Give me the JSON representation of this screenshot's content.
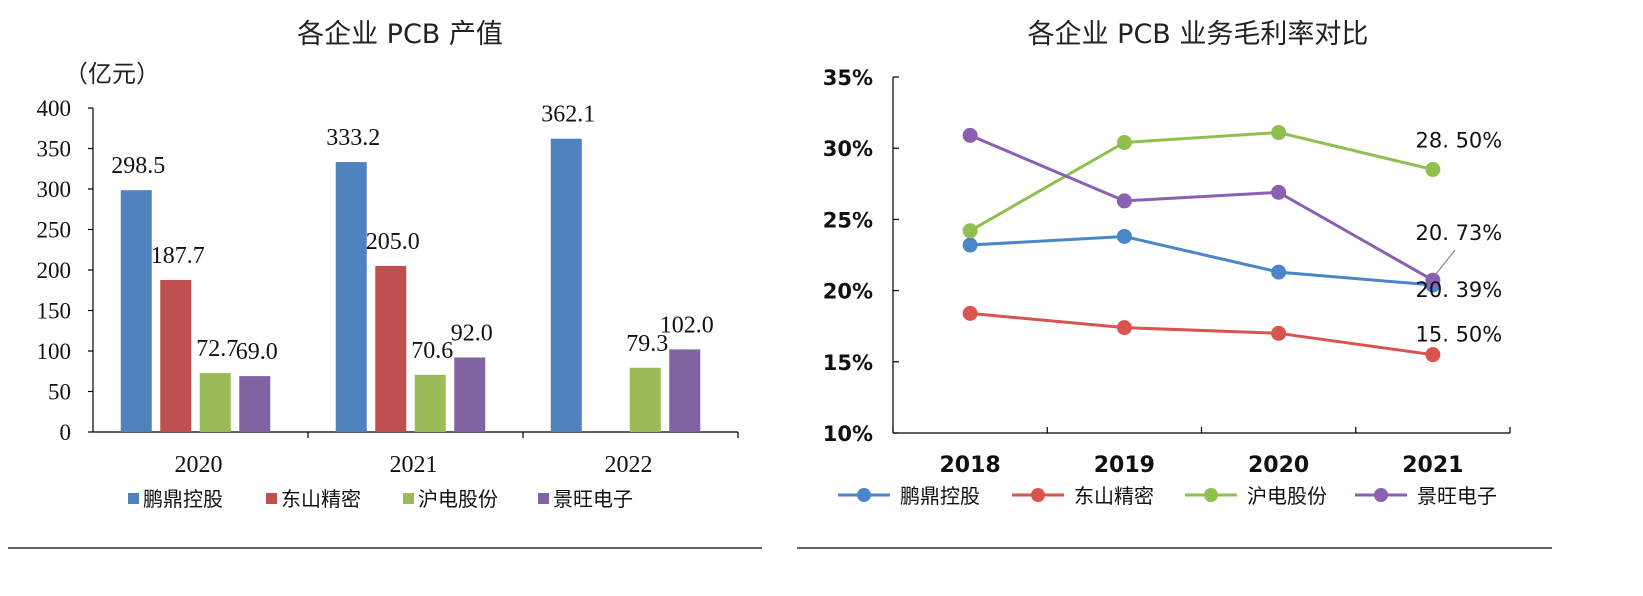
{
  "chart_data": [
    {
      "type": "bar",
      "title": "各企业 PCB 产值",
      "ylabel": "（亿元）",
      "ylim": [
        0,
        400
      ],
      "yticks": [
        0,
        50,
        100,
        150,
        200,
        250,
        300,
        350,
        400
      ],
      "categories": [
        "2020",
        "2021",
        "2022"
      ],
      "series": [
        {
          "name": "鹏鼎控股",
          "color": "#4f81bd",
          "values": [
            298.5,
            333.2,
            362.1
          ],
          "labels": [
            "298.5",
            "333.2",
            "362.1"
          ]
        },
        {
          "name": "东山精密",
          "color": "#c0504d",
          "values": [
            187.7,
            205.0,
            null
          ],
          "labels": [
            "187.7",
            "205.0",
            null
          ]
        },
        {
          "name": "沪电股份",
          "color": "#9bbb59",
          "values": [
            72.7,
            70.6,
            79.3
          ],
          "labels": [
            "72.7",
            "70.6",
            "79.3"
          ]
        },
        {
          "name": "景旺电子",
          "color": "#8064a2",
          "values": [
            69.0,
            92.0,
            102.0
          ],
          "labels": [
            "69.0",
            "92.0",
            "102.0"
          ]
        }
      ]
    },
    {
      "type": "line",
      "title": "各企业 PCB 业务毛利率对比",
      "ylim": [
        10,
        35
      ],
      "yticks": [
        10,
        15,
        20,
        25,
        30,
        35
      ],
      "yticklabels": [
        "10%",
        "15%",
        "20%",
        "25%",
        "30%",
        "35%"
      ],
      "x": [
        "2018",
        "2019",
        "2020",
        "2021"
      ],
      "series": [
        {
          "name": "鹏鼎控股",
          "color": "#4a86c8",
          "values": [
            23.2,
            23.8,
            21.3,
            20.39
          ],
          "end_label": "20. 39%"
        },
        {
          "name": "东山精密",
          "color": "#d9534f",
          "values": [
            18.4,
            17.4,
            17.0,
            15.5
          ],
          "end_label": "15. 50%"
        },
        {
          "name": "沪电股份",
          "color": "#8fc04f",
          "values": [
            24.2,
            30.4,
            31.1,
            28.5
          ],
          "end_label": "28. 50%"
        },
        {
          "name": "景旺电子",
          "color": "#8a5fb4",
          "values": [
            30.9,
            26.3,
            26.9,
            20.73
          ],
          "end_label": "20. 73%"
        }
      ]
    }
  ]
}
